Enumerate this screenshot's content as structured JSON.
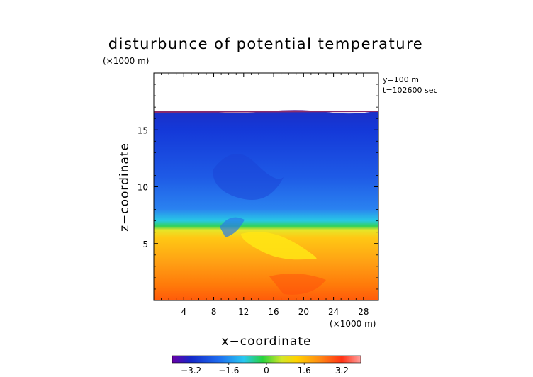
{
  "chart_data": {
    "type": "heatmap",
    "title": "disturbunce of potential temperature",
    "xlabel": "x−coordinate",
    "ylabel": "z−coordinate",
    "x_unit": "(×1000 m)",
    "y_unit": "(×1000 m)",
    "annotations": [
      "y=100 m",
      "t=102600 sec"
    ],
    "xlim": [
      0,
      30
    ],
    "ylim": [
      0,
      20
    ],
    "x_ticks": [
      4,
      8,
      12,
      16,
      20,
      24,
      28
    ],
    "y_ticks": [
      5,
      10,
      15
    ],
    "data_top_km": 16.7,
    "colorbar": {
      "range": [
        -4,
        4
      ],
      "ticks": [
        "−3.2",
        "−1.6",
        "0",
        "1.6",
        "3.2"
      ],
      "tick_values": [
        -3.2,
        -1.6,
        0,
        1.6,
        3.2
      ],
      "colors": [
        "#6a00a8",
        "#1428c8",
        "#1e6ef0",
        "#28c8f0",
        "#28d23c",
        "#d2e628",
        "#ffd200",
        "#ff8c14",
        "#ff3214",
        "#ffa0a0"
      ]
    },
    "field_description": [
      {
        "z_range": [
          0,
          5
        ],
        "value": 1.8
      },
      {
        "z_range": [
          5,
          7
        ],
        "value": 0.4
      },
      {
        "z_range": [
          7,
          16.7
        ],
        "value": -2.6
      }
    ]
  }
}
